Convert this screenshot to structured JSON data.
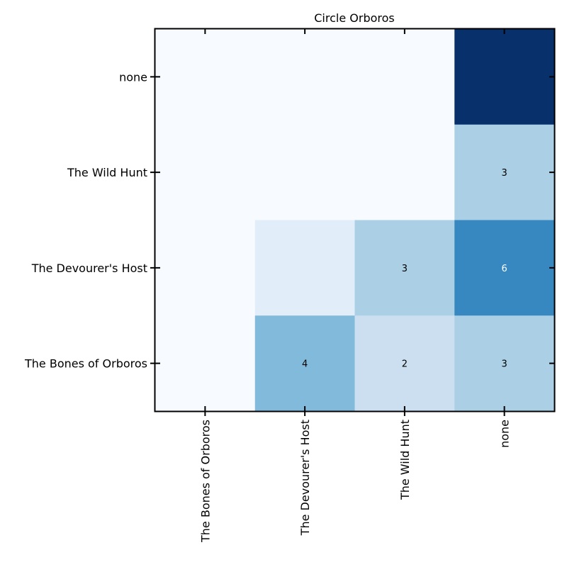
{
  "chart_data": {
    "type": "heatmap",
    "title": "Circle Orboros",
    "x_categories": [
      "The Bones of Orboros",
      "The Devourer's Host",
      "The Wild Hunt",
      "none"
    ],
    "y_categories": [
      "none",
      "The Wild Hunt",
      "The Devourer's Host",
      "The Bones of Orboros"
    ],
    "values": [
      [
        0,
        0,
        0,
        9
      ],
      [
        0,
        0,
        0,
        3
      ],
      [
        0,
        1,
        3,
        6
      ],
      [
        0,
        4,
        2,
        3
      ]
    ],
    "cell_labels": [
      [
        "",
        "",
        "",
        ""
      ],
      [
        "",
        "",
        "",
        "3"
      ],
      [
        "",
        "",
        "3",
        "6"
      ],
      [
        "",
        "4",
        "2",
        "3"
      ]
    ],
    "colormap": "Blues",
    "colormap_stops": [
      "#f7fbff",
      "#deebf7",
      "#c6dbef",
      "#9ecae1",
      "#6baed6",
      "#4292c6",
      "#2171b5",
      "#08519c",
      "#08306b"
    ],
    "vmin": 0,
    "vmax": 9,
    "grid": false
  }
}
